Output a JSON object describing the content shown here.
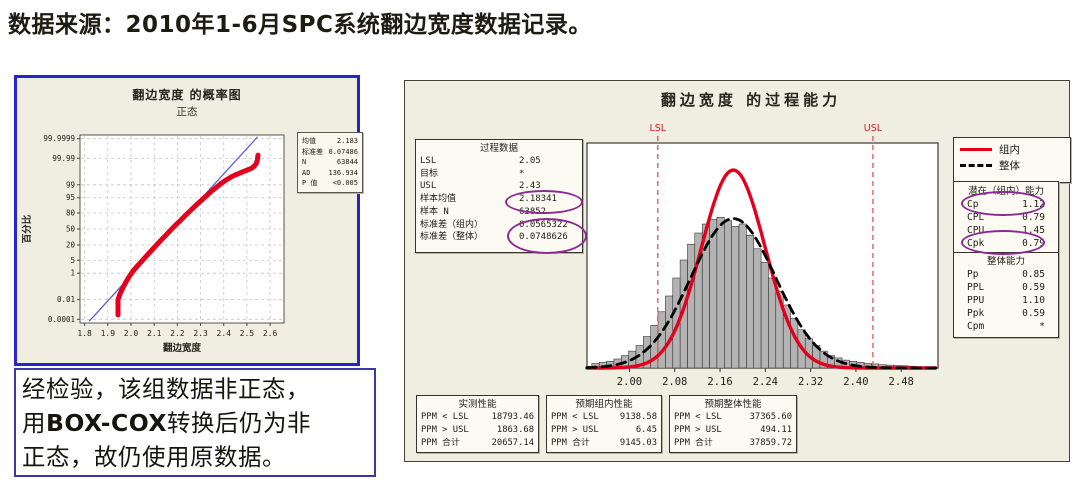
{
  "page": {
    "title": "数据来源：2010年1-6月SPC系统翻边宽度数据记录。"
  },
  "note": {
    "line1": "经检验，该组数据非正态，",
    "line2_pre": "用",
    "line2_bold": "BOX-COX",
    "line2_post": "转换后仍为非",
    "line3": "正态，故仍使用原数据。"
  },
  "prob_plot": {
    "stats_rows": [
      [
        "均值",
        "2.183"
      ],
      [
        "标准差",
        "0.07486"
      ],
      [
        "N",
        "63844"
      ],
      [
        "AD",
        "136.934"
      ],
      [
        "P 值",
        "<0.005"
      ]
    ]
  },
  "capability": {
    "process_data": {
      "title": "过程数据",
      "rows": [
        [
          "LSL",
          "2.05"
        ],
        [
          "目标",
          "*"
        ],
        [
          "USL",
          "2.43"
        ],
        [
          "样本均值",
          "2.18341"
        ],
        [
          "样本 N",
          "63852"
        ],
        [
          "标准差（组内）",
          "0.0565322"
        ],
        [
          "标准差（整体）",
          "0.0748626"
        ]
      ]
    },
    "legend": [
      {
        "label": "组内",
        "style": "solid",
        "color": "#e4001b"
      },
      {
        "label": "整体",
        "style": "dashed",
        "color": "#000000"
      }
    ],
    "within": {
      "title": "潜在（组内）能力",
      "rows": [
        [
          "Cp",
          "1.12"
        ],
        [
          "CPL",
          "0.79"
        ],
        [
          "CPU",
          "1.45"
        ],
        [
          "Cpk",
          "0.79"
        ]
      ]
    },
    "overall": {
      "title": "整体能力",
      "rows": [
        [
          "Pp",
          "0.85"
        ],
        [
          "PPL",
          "0.59"
        ],
        [
          "PPU",
          "1.10"
        ],
        [
          "Ppk",
          "0.59"
        ],
        [
          "Cpm",
          "*"
        ]
      ]
    },
    "lsl_label": "LSL",
    "usl_label": "USL",
    "performance_tables": [
      {
        "title": "实测性能",
        "rows": [
          [
            "PPM < LSL",
            "18793.46"
          ],
          [
            "PPM > USL",
            "1863.68"
          ],
          [
            "PPM 合计",
            "20657.14"
          ]
        ]
      },
      {
        "title": "预期组内性能",
        "rows": [
          [
            "PPM < LSL",
            "9138.58"
          ],
          [
            "PPM > USL",
            "6.45"
          ],
          [
            "PPM 合计",
            "9145.03"
          ]
        ]
      },
      {
        "title": "预期整体性能",
        "rows": [
          [
            "PPM < LSL",
            "37365.60"
          ],
          [
            "PPM > USL",
            "494.11"
          ],
          [
            "PPM 合计",
            "37859.72"
          ]
        ]
      }
    ]
  },
  "chart_data": [
    {
      "type": "scatter",
      "title": "翻边宽度 的概率图",
      "subtitle": "正态",
      "xlabel": "翻边宽度",
      "ylabel": "百分比",
      "y_scale": "normal-probability-probit",
      "grid": "dashed",
      "xlim": [
        1.78,
        2.66
      ],
      "x_ticks": [
        1.8,
        1.9,
        2.0,
        2.1,
        2.2,
        2.3,
        2.4,
        2.5,
        2.6
      ],
      "y_ticks": [
        "99.9999",
        "99.99",
        "99",
        "95",
        "80",
        "50",
        "20",
        "5",
        "1",
        "0.01",
        "0.0001"
      ],
      "fit_line": {
        "mean": 2.183,
        "sd": 0.07486,
        "color": "#5d5dd8"
      },
      "series": [
        {
          "name": "翻边宽度",
          "color": "#e4001b",
          "points": [
            [
              1.944,
              0.0003
            ],
            [
              1.944,
              0.01
            ],
            [
              1.952,
              0.03
            ],
            [
              1.965,
              0.1
            ],
            [
              1.98,
              0.3
            ],
            [
              1.995,
              0.7
            ],
            [
              2.01,
              1.4
            ],
            [
              2.03,
              2.8
            ],
            [
              2.05,
              5
            ],
            [
              2.07,
              8.5
            ],
            [
              2.09,
              13.5
            ],
            [
              2.11,
              20
            ],
            [
              2.13,
              28
            ],
            [
              2.15,
              37
            ],
            [
              2.17,
              47
            ],
            [
              2.19,
              57
            ],
            [
              2.21,
              66
            ],
            [
              2.23,
              74.5
            ],
            [
              2.25,
              81.5
            ],
            [
              2.27,
              87
            ],
            [
              2.29,
              91.3
            ],
            [
              2.31,
              94.3
            ],
            [
              2.33,
              96.4
            ],
            [
              2.35,
              97.8
            ],
            [
              2.37,
              98.65
            ],
            [
              2.39,
              99.2
            ],
            [
              2.41,
              99.5
            ],
            [
              2.43,
              99.68
            ],
            [
              2.45,
              99.78
            ],
            [
              2.47,
              99.84
            ],
            [
              2.49,
              99.885
            ],
            [
              2.505,
              99.91
            ],
            [
              2.52,
              99.93
            ],
            [
              2.53,
              99.95
            ],
            [
              2.54,
              99.97
            ],
            [
              2.545,
              99.985
            ],
            [
              2.548,
              99.995
            ]
          ]
        }
      ],
      "stats_legend": {
        "均值": "2.183",
        "标准差": "0.07486",
        "N": "63844",
        "AD": "136.934",
        "P 值": "<0.005"
      }
    },
    {
      "type": "histogram",
      "title": "翻边宽度 的过程能力",
      "xlim": [
        1.925,
        2.545
      ],
      "x_ticks": [
        2.0,
        2.08,
        2.16,
        2.24,
        2.32,
        2.4,
        2.48
      ],
      "lsl": 2.05,
      "usl": 2.43,
      "sample_mean": 2.18341,
      "sigma_within": 0.0565322,
      "sigma_overall": 0.0748626,
      "bins": {
        "start": 1.9335,
        "width": 0.013,
        "heights_pct": [
          2,
          2.5,
          3,
          4,
          5.5,
          7.5,
          10,
          14,
          19,
          25,
          32,
          40,
          48,
          55,
          60,
          64,
          66,
          67,
          65.5,
          63,
          64,
          59,
          53,
          47,
          40,
          34,
          28,
          22,
          17,
          13,
          10,
          7.5,
          5.5,
          4.5,
          3.5,
          3,
          2.5,
          2,
          1.8,
          1.5,
          1.3,
          1.1,
          1,
          0.8,
          0.6
        ]
      },
      "curves": [
        {
          "name": "组内",
          "color": "#e4001b",
          "sigma": 0.0565322,
          "peak_pct": 88,
          "style": "solid"
        },
        {
          "name": "整体",
          "color": "#000000",
          "sigma": 0.0748626,
          "peak_pct": 66.4,
          "style": "dashed"
        }
      ]
    }
  ]
}
